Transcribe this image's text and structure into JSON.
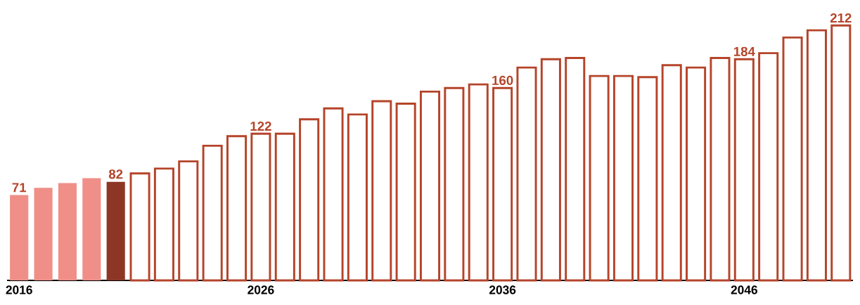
{
  "chart_data": {
    "type": "bar",
    "categories": [
      "2016",
      null,
      null,
      null,
      null,
      null,
      null,
      null,
      null,
      null,
      "2026",
      null,
      null,
      null,
      null,
      null,
      null,
      null,
      null,
      null,
      "2036",
      null,
      null,
      null,
      null,
      null,
      null,
      null,
      null,
      null,
      "2046",
      null,
      null,
      null,
      null
    ],
    "series": [
      {
        "colors": [
          "#ef8f88",
          "#ef8f88",
          "#ef8f88",
          "#ef8f88",
          "#8e3626",
          null,
          null,
          null,
          null,
          null,
          null,
          null,
          null,
          null,
          null,
          null,
          null,
          null,
          null,
          null,
          null,
          null,
          null,
          null,
          null,
          null,
          null,
          null,
          null,
          null,
          null,
          null,
          null,
          null,
          null
        ],
        "values": [
          71,
          77,
          81,
          85,
          82,
          null,
          null,
          null,
          null,
          null,
          null,
          null,
          null,
          null,
          null,
          null,
          null,
          null,
          null,
          null,
          null,
          null,
          null,
          null,
          null,
          null,
          null,
          null,
          null,
          null,
          null,
          null,
          null,
          null,
          null
        ],
        "value_labels": [
          "71",
          null,
          null,
          null,
          "82",
          null,
          null,
          null,
          null,
          null,
          null,
          null,
          null,
          null,
          null,
          null,
          null,
          null,
          null,
          null,
          null,
          null,
          null,
          null,
          null,
          null,
          null,
          null,
          null,
          null,
          null,
          null,
          null,
          null,
          null
        ]
      },
      {
        "color": "#b5442a",
        "values": [
          null,
          null,
          null,
          null,
          null,
          89,
          93,
          99,
          112,
          120,
          122,
          122,
          134,
          143,
          138,
          149,
          147,
          157,
          160,
          163,
          160,
          177,
          184,
          185,
          170,
          170,
          169,
          179,
          177,
          185,
          184,
          189,
          202,
          208,
          212
        ],
        "value_labels": [
          null,
          null,
          null,
          null,
          null,
          null,
          null,
          null,
          null,
          null,
          "122",
          null,
          null,
          null,
          null,
          null,
          null,
          null,
          null,
          null,
          "160",
          null,
          null,
          null,
          null,
          null,
          null,
          null,
          null,
          null,
          "184",
          null,
          null,
          null,
          "212"
        ]
      }
    ],
    "tick_labels": "x"
  }
}
